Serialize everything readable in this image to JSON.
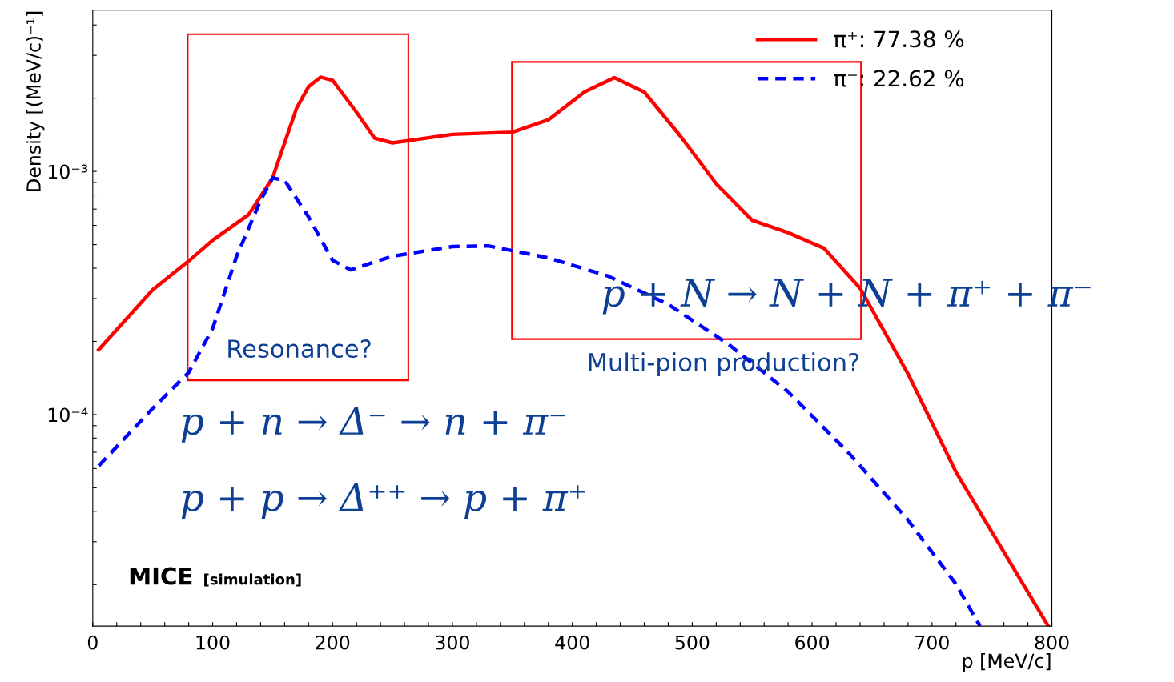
{
  "chart_data": {
    "type": "line",
    "xlabel": "p [MeV/c]",
    "ylabel": "Density [(MeV/c)⁻¹]",
    "log": "y",
    "xlim": [
      0,
      800
    ],
    "xticks": [
      0,
      {
        "value": 20,
        "label": null
      },
      {
        "value": 40,
        "label": null
      },
      {
        "value": 60,
        "label": null
      },
      {
        "value": 80,
        "label": null
      },
      100,
      {
        "value": 120,
        "label": null
      },
      {
        "value": 140,
        "label": null
      },
      {
        "value": 160,
        "label": null
      },
      {
        "value": 180,
        "label": null
      },
      200,
      {
        "value": 220,
        "label": null
      },
      {
        "value": 240,
        "label": null
      },
      {
        "value": 260,
        "label": null
      },
      {
        "value": 280,
        "label": null
      },
      300,
      {
        "value": 320,
        "label": null
      },
      {
        "value": 340,
        "label": null
      },
      {
        "value": 360,
        "label": null
      },
      {
        "value": 380,
        "label": null
      },
      400,
      {
        "value": 420,
        "label": null
      },
      {
        "value": 440,
        "label": null
      },
      {
        "value": 460,
        "label": null
      },
      {
        "value": 480,
        "label": null
      },
      500,
      {
        "value": 520,
        "label": null
      },
      {
        "value": 540,
        "label": null
      },
      {
        "value": 560,
        "label": null
      },
      {
        "value": 580,
        "label": null
      },
      600,
      {
        "value": 620,
        "label": null
      },
      {
        "value": 640,
        "label": null
      },
      {
        "value": 660,
        "label": null
      },
      {
        "value": 680,
        "label": null
      },
      700,
      {
        "value": 720,
        "label": null
      },
      {
        "value": 740,
        "label": null
      },
      {
        "value": 760,
        "label": null
      },
      {
        "value": 780,
        "label": null
      },
      800
    ],
    "ylim": [
      1.35e-05,
      0.0046
    ],
    "yticks": [
      {
        "value": 2e-05,
        "label": null
      },
      {
        "value": 3e-05,
        "label": null
      },
      {
        "value": 4e-05,
        "label": null
      },
      {
        "value": 5e-05,
        "label": null
      },
      {
        "value": 6e-05,
        "label": null
      },
      {
        "value": 7e-05,
        "label": null
      },
      {
        "value": 8e-05,
        "label": null
      },
      {
        "value": 9e-05,
        "label": null
      },
      {
        "value": 0.0001,
        "label": "10⁻⁴"
      },
      {
        "value": 0.0002,
        "label": null
      },
      {
        "value": 0.0003,
        "label": null
      },
      {
        "value": 0.0004,
        "label": null
      },
      {
        "value": 0.0005,
        "label": null
      },
      {
        "value": 0.0006,
        "label": null
      },
      {
        "value": 0.0007,
        "label": null
      },
      {
        "value": 0.0008,
        "label": null
      },
      {
        "value": 0.0009,
        "label": null
      },
      {
        "value": 0.001,
        "label": "10⁻³"
      },
      {
        "value": 0.002,
        "label": null
      },
      {
        "value": 0.003,
        "label": null
      },
      {
        "value": 0.004,
        "label": null
      }
    ],
    "grid": false,
    "legend": "top right",
    "marker": "none",
    "series": [
      {
        "name": "π⁺: 77.38 %",
        "color": "#ff0000",
        "line_style": "solid",
        "x": [
          5,
          50,
          80,
          100,
          130,
          150,
          170,
          180,
          190,
          200,
          220,
          235,
          250,
          300,
          350,
          380,
          410,
          435,
          460,
          490,
          520,
          550,
          580,
          610,
          640,
          680,
          720,
          760,
          797
        ],
        "values": [
          0.000185,
          0.000326,
          0.000428,
          0.000521,
          0.000664,
          0.00094,
          0.00182,
          0.00223,
          0.00244,
          0.00237,
          0.00175,
          0.00137,
          0.00131,
          0.00142,
          0.00145,
          0.00163,
          0.00212,
          0.00243,
          0.00212,
          0.0014,
          0.00089,
          0.00063,
          0.00056,
          0.000483,
          0.000331,
          0.000147,
          5.8e-05,
          2.72e-05,
          1.35e-05
        ]
      },
      {
        "name": "π⁻: 22.62 %",
        "color": "#0000ff",
        "line_style": "dashed",
        "x": [
          5,
          50,
          80,
          100,
          120,
          140,
          150,
          160,
          180,
          200,
          215,
          250,
          300,
          330,
          380,
          430,
          480,
          530,
          580,
          630,
          680,
          720,
          740
        ],
        "values": [
          6.15e-05,
          0.000106,
          0.000149,
          0.000226,
          0.000448,
          0.00076,
          0.00094,
          0.00092,
          0.00065,
          0.000431,
          0.000394,
          0.000448,
          0.000491,
          0.000494,
          0.000441,
          0.000371,
          0.000284,
          0.000195,
          0.000124,
          7e-05,
          3.68e-05,
          2.01e-05,
          1.35e-05
        ]
      }
    ],
    "annotations": [
      "p + N → N + N + π⁺ + π⁻",
      "Resonance?",
      "Multi-pion production?",
      "p + n → Δ⁻ → n + π⁻",
      "p + p → Δ⁺⁺ → p + π⁺",
      "MICE",
      "[simulation]"
    ]
  }
}
